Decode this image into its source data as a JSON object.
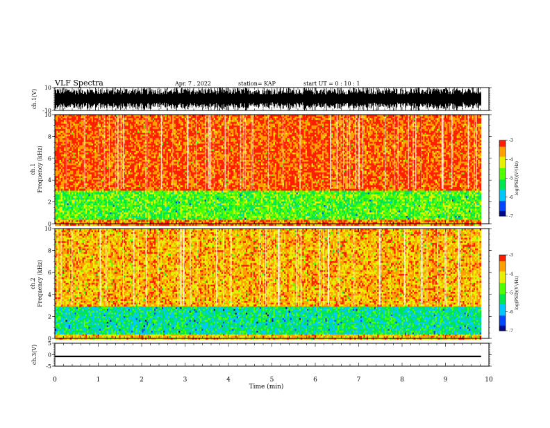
{
  "header": {
    "title": "VLF Spectra",
    "date": "Apr. 7 , 2022",
    "station": "station= KAP",
    "start": "start UT = 0 : 10 : 1"
  },
  "colors": {
    "palette": [
      "#000a8c",
      "#0046ff",
      "#00c8ff",
      "#00e650",
      "#50ff00",
      "#e6f000",
      "#ffa000",
      "#ff1e00",
      "#ff5050",
      "#ffffff"
    ],
    "trace": "#000000"
  },
  "chart_data": [
    {
      "type": "line",
      "panel": "ch1-waveform",
      "ylabel": "ch.1(V)",
      "yticks": [
        "10",
        "-10"
      ],
      "ylim": [
        -10,
        10
      ],
      "xlim": [
        0,
        10
      ],
      "description_values": "dense oscillating waveform spanning about -10 to 10 V over 0-9.8 min"
    },
    {
      "type": "heatmap",
      "panel": "ch1-spectrogram",
      "ylabel": "ch.1\nFrequency (kHz)",
      "yticks": [
        "0",
        "2",
        "4",
        "6",
        "8",
        "10"
      ],
      "ylim": [
        0,
        10
      ],
      "xlim": [
        0,
        10
      ],
      "colorbar_label": "log(PSD)(V²/Hz)",
      "colorbar_ticks": [
        "-3",
        "-4",
        "-5",
        "-6",
        "-7"
      ],
      "clim": [
        -7,
        -3
      ],
      "bands": [
        {
          "from_khz": 0,
          "to_khz": 0.5,
          "level": -3.4
        },
        {
          "from_khz": 0.5,
          "to_khz": 3.2,
          "level": -4.8
        },
        {
          "from_khz": 3.2,
          "to_khz": 10,
          "level": -3.2
        }
      ]
    },
    {
      "type": "heatmap",
      "panel": "ch2-spectrogram",
      "ylabel": "ch.2\nFrequency (kHz)",
      "yticks": [
        "0",
        "2",
        "4",
        "6",
        "8",
        "10"
      ],
      "ylim": [
        0,
        10
      ],
      "xlim": [
        0,
        10
      ],
      "colorbar_label": "log(PSD)(V²/Hz)",
      "colorbar_ticks": [
        "-3",
        "-4",
        "-5",
        "-6",
        "-7"
      ],
      "clim": [
        -7,
        -3
      ],
      "bands": [
        {
          "from_khz": 0,
          "to_khz": 0.4,
          "level": -3.8
        },
        {
          "from_khz": 0.4,
          "to_khz": 3.0,
          "level": -5.4
        },
        {
          "from_khz": 3.0,
          "to_khz": 10,
          "level": -3.7
        }
      ]
    },
    {
      "type": "line",
      "panel": "ch3-waveform",
      "ylabel": "ch.3(V)",
      "yticks": [
        "5",
        "0",
        "-5"
      ],
      "ylim": [
        -5,
        5
      ],
      "xlim": [
        0,
        10
      ],
      "value_range": [
        -1.1,
        -0.4
      ]
    }
  ],
  "xaxis": {
    "label": "Time (min)",
    "ticks": [
      "0",
      "1",
      "2",
      "3",
      "4",
      "5",
      "6",
      "7",
      "8",
      "9",
      "10"
    ],
    "xlim": [
      0,
      10
    ],
    "data_end": 9.82
  }
}
